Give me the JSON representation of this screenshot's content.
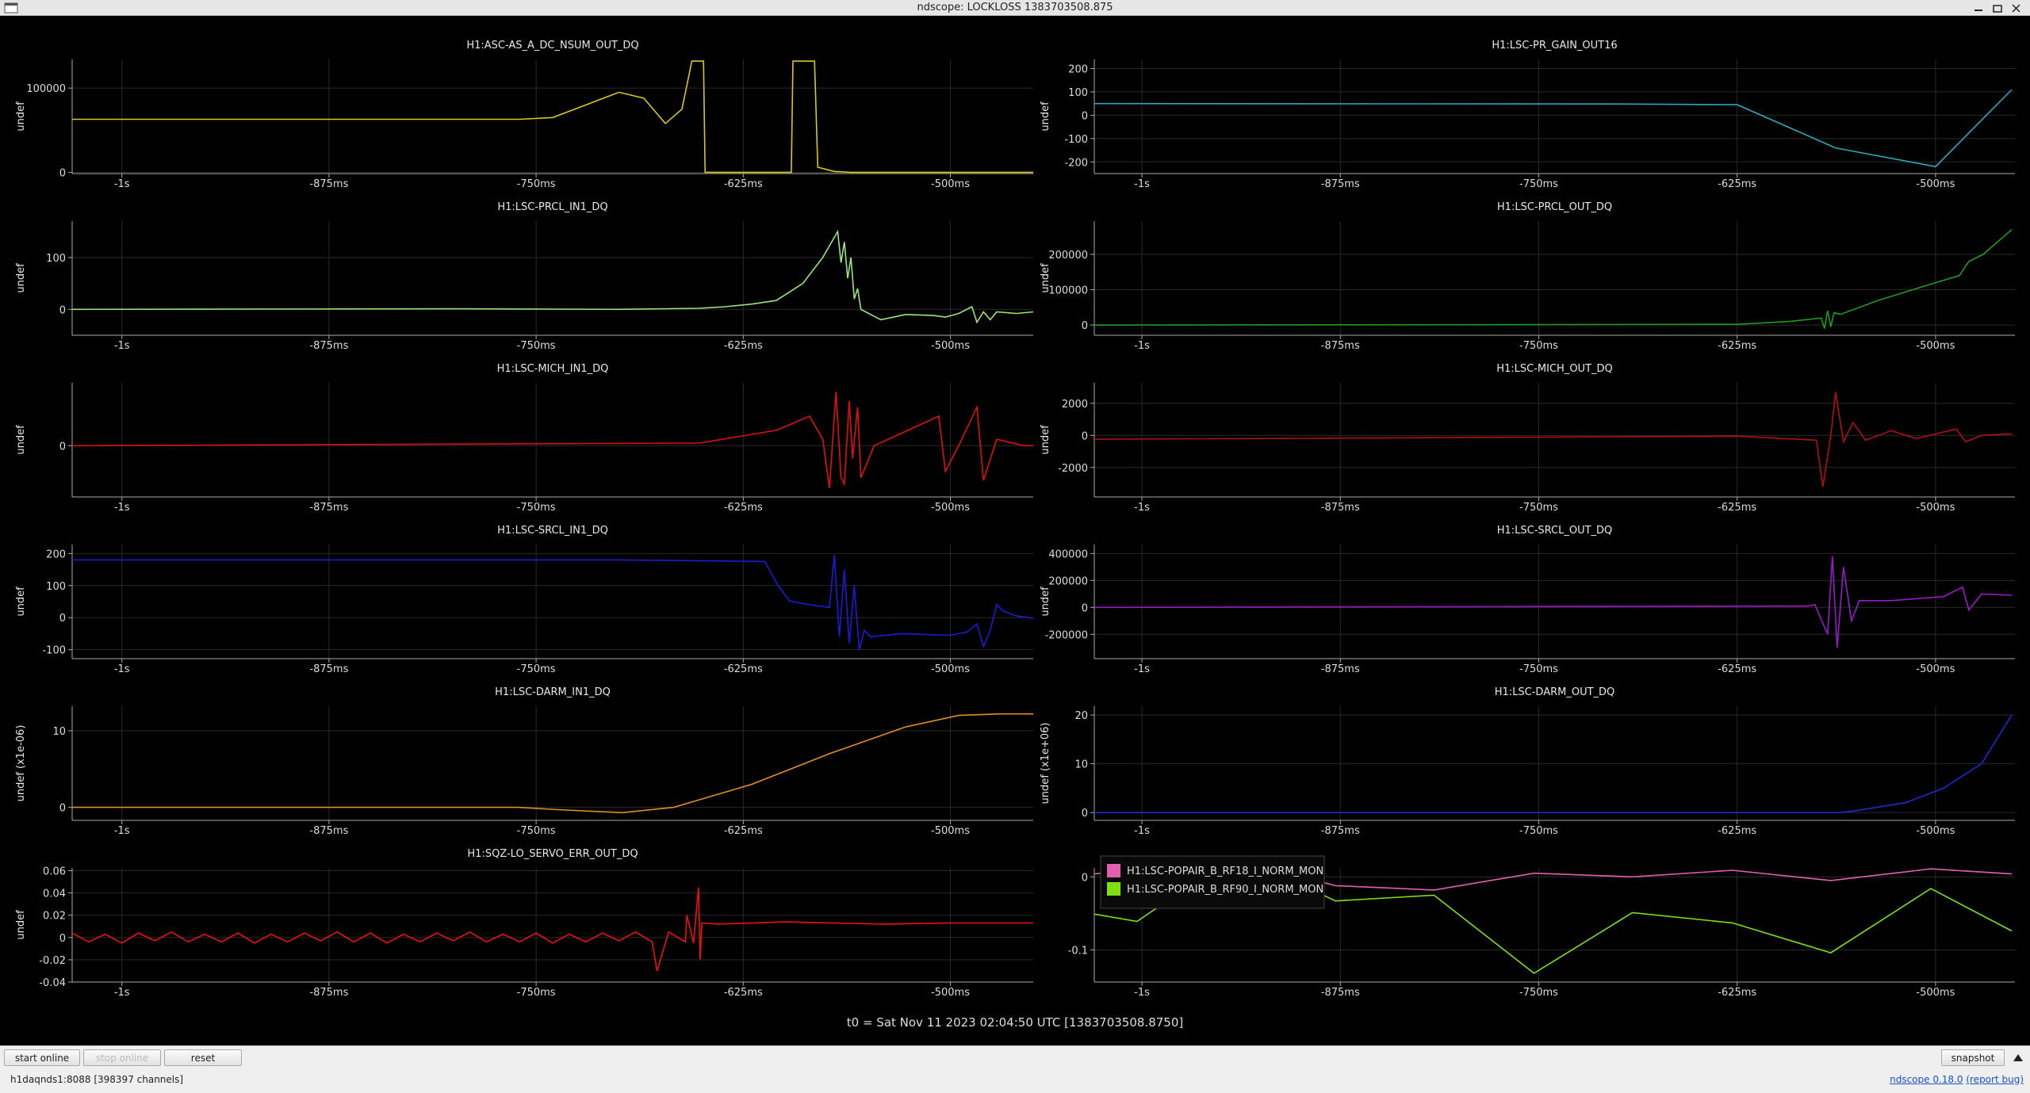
{
  "window": {
    "title": "ndscope: LOCKLOSS 1383703508.875"
  },
  "chart_data": [
    {
      "type": "line",
      "title": "H1:ASC-AS_A_DC_NSUM_OUT_DQ",
      "ylabel": "undef",
      "color": "#d8c81c",
      "xlim": [
        -1030,
        -450
      ],
      "ylim": [
        -1500,
        134000
      ],
      "xticks": [
        {
          "value": -1000,
          "label": "-1s"
        },
        {
          "value": -875,
          "label": "-875ms"
        },
        {
          "value": -750,
          "label": "-750ms"
        },
        {
          "value": -625,
          "label": "-625ms"
        },
        {
          "value": -500,
          "label": "-500ms"
        }
      ],
      "yticks": [
        0,
        100000
      ],
      "grid": true,
      "x": [
        -1030,
        -760,
        -740,
        -720,
        -700,
        -685,
        -672,
        -662,
        -656,
        -649,
        -648,
        -596,
        -595,
        -582,
        -580,
        -570,
        -560,
        -450
      ],
      "values": [
        63000,
        63000,
        65000,
        80000,
        95000,
        88000,
        58000,
        75000,
        132000,
        132000,
        0,
        0,
        132000,
        132000,
        6000,
        1000,
        0,
        0
      ]
    },
    {
      "type": "line",
      "title": "H1:LSC-PR_GAIN_OUT16",
      "ylabel": "undef",
      "color": "#2aa9b8",
      "xlim": [
        -1030,
        -450
      ],
      "ylim": [
        -250,
        239
      ],
      "xticks": [
        {
          "value": -1000,
          "label": "-1s"
        },
        {
          "value": -875,
          "label": "-875ms"
        },
        {
          "value": -750,
          "label": "-750ms"
        },
        {
          "value": -625,
          "label": "-625ms"
        },
        {
          "value": -500,
          "label": "-500ms"
        }
      ],
      "yticks": [
        -200,
        -100,
        0,
        100,
        200
      ],
      "grid": true,
      "x": [
        -1030,
        -700,
        -625,
        -563,
        -500,
        -452
      ],
      "values": [
        50,
        48,
        45,
        -140,
        -220,
        110
      ]
    },
    {
      "type": "line",
      "title": "H1:LSC-PRCL_IN1_DQ",
      "ylabel": "undef",
      "color": "#9be57a",
      "xlim": [
        -1030,
        -450
      ],
      "ylim": [
        -50,
        170
      ],
      "xticks": [
        {
          "value": -1000,
          "label": "-1s"
        },
        {
          "value": -875,
          "label": "-875ms"
        },
        {
          "value": -750,
          "label": "-750ms"
        },
        {
          "value": -625,
          "label": "-625ms"
        },
        {
          "value": -500,
          "label": "-500ms"
        }
      ],
      "yticks": [
        0,
        100
      ],
      "grid": true,
      "x": [
        -1030,
        -800,
        -700,
        -652,
        -636,
        -620,
        -605,
        -589,
        -577,
        -568,
        -566,
        -564,
        -562,
        -560,
        -558,
        -556,
        -554,
        -548,
        -542,
        -527,
        -510,
        -503,
        -495,
        -487,
        -484,
        -480,
        -476,
        -472,
        -460,
        -450
      ],
      "values": [
        0,
        1,
        0,
        2,
        5,
        10,
        17,
        50,
        100,
        150,
        90,
        130,
        60,
        100,
        20,
        40,
        0,
        -10,
        -20,
        -10,
        -12,
        -15,
        -8,
        5,
        -25,
        -5,
        -20,
        -5,
        -8,
        -5
      ]
    },
    {
      "type": "line",
      "title": "H1:LSC-PRCL_OUT_DQ",
      "ylabel": "undef",
      "color": "#1f9a1f",
      "xlim": [
        -1030,
        -450
      ],
      "ylim": [
        -29000,
        294000
      ],
      "xticks": [
        {
          "value": -1000,
          "label": "-1s"
        },
        {
          "value": -875,
          "label": "-875ms"
        },
        {
          "value": -750,
          "label": "-750ms"
        },
        {
          "value": -625,
          "label": "-625ms"
        },
        {
          "value": -500,
          "label": "-500ms"
        }
      ],
      "yticks": [
        0,
        100000,
        200000
      ],
      "grid": true,
      "x": [
        -1030,
        -625,
        -592,
        -572,
        -570,
        -568,
        -566,
        -564,
        -560,
        -536,
        -500,
        -485,
        -479,
        -470,
        -452
      ],
      "values": [
        0,
        2000,
        10000,
        20000,
        -10000,
        40000,
        -5000,
        35000,
        30000,
        70000,
        120000,
        140000,
        180000,
        200000,
        270000
      ]
    },
    {
      "type": "line",
      "title": "H1:LSC-MICH_IN1_DQ",
      "ylabel": "undef",
      "color": "#e01010",
      "xlim": [
        -1030,
        -450
      ],
      "ylim": [
        -40,
        49
      ],
      "xticks": [
        {
          "value": -1000,
          "label": "-1s"
        },
        {
          "value": -875,
          "label": "-875ms"
        },
        {
          "value": -750,
          "label": "-750ms"
        },
        {
          "value": -625,
          "label": "-625ms"
        },
        {
          "value": -500,
          "label": "-500ms"
        }
      ],
      "yticks": [
        0
      ],
      "grid": true,
      "x": [
        -1030,
        -651,
        -605,
        -585,
        -577,
        -573,
        -569,
        -566,
        -564,
        -561,
        -559,
        -556,
        -554,
        -546,
        -507,
        -503,
        -495,
        -484,
        -480,
        -472,
        -456,
        -450
      ],
      "values": [
        0,
        2,
        12,
        23,
        5,
        -33,
        42,
        -25,
        -30,
        35,
        -10,
        30,
        -25,
        0,
        23,
        -20,
        0,
        30,
        -27,
        5,
        0,
        0
      ]
    },
    {
      "type": "line",
      "title": "H1:LSC-MICH_OUT_DQ",
      "ylabel": "undef",
      "color": "#b01010",
      "xlim": [
        -1030,
        -450
      ],
      "ylim": [
        -3840,
        3280
      ],
      "xticks": [
        {
          "value": -1000,
          "label": "-1s"
        },
        {
          "value": -875,
          "label": "-875ms"
        },
        {
          "value": -750,
          "label": "-750ms"
        },
        {
          "value": -625,
          "label": "-625ms"
        },
        {
          "value": -500,
          "label": "-500ms"
        }
      ],
      "yticks": [
        -2000,
        0,
        2000
      ],
      "grid": true,
      "x": [
        -1030,
        -625,
        -575,
        -571,
        -566,
        -563,
        -558,
        -552,
        -544,
        -528,
        -512,
        -487,
        -481,
        -471,
        -452
      ],
      "values": [
        -240,
        -50,
        -300,
        -3200,
        0,
        2700,
        -400,
        800,
        -300,
        300,
        -200,
        400,
        -400,
        0,
        100
      ]
    },
    {
      "type": "line",
      "title": "H1:LSC-SRCL_IN1_DQ",
      "ylabel": "undef",
      "color": "#1c1cd8",
      "xlim": [
        -1030,
        -450
      ],
      "ylim": [
        -128,
        228
      ],
      "xticks": [
        {
          "value": -1000,
          "label": "-1s"
        },
        {
          "value": -875,
          "label": "-875ms"
        },
        {
          "value": -750,
          "label": "-750ms"
        },
        {
          "value": -625,
          "label": "-625ms"
        },
        {
          "value": -500,
          "label": "-500ms"
        }
      ],
      "yticks": [
        -100,
        0,
        100,
        200
      ],
      "grid": true,
      "x": [
        -1030,
        -700,
        -612,
        -604,
        -597,
        -585,
        -573,
        -570,
        -567,
        -564,
        -561,
        -558,
        -555,
        -552,
        -548,
        -530,
        -500,
        -490,
        -484,
        -480,
        -476,
        -472,
        -468,
        -460,
        -450
      ],
      "values": [
        180,
        180,
        175,
        100,
        52,
        40,
        32,
        195,
        -60,
        150,
        -80,
        100,
        -100,
        -40,
        -60,
        -50,
        -55,
        -45,
        -20,
        -90,
        -40,
        40,
        20,
        5,
        -2
      ]
    },
    {
      "type": "line",
      "title": "H1:LSC-SRCL_OUT_DQ",
      "ylabel": "undef",
      "color": "#9a19c8",
      "xlim": [
        -1030,
        -450
      ],
      "ylim": [
        -381000,
        467000
      ],
      "xticks": [
        {
          "value": -1000,
          "label": "-1s"
        },
        {
          "value": -875,
          "label": "-875ms"
        },
        {
          "value": -750,
          "label": "-750ms"
        },
        {
          "value": -625,
          "label": "-625ms"
        },
        {
          "value": -500,
          "label": "-500ms"
        }
      ],
      "yticks": [
        -200000,
        0,
        200000,
        400000
      ],
      "grid": true,
      "x": [
        -1030,
        -580,
        -576,
        -568,
        -565,
        -562,
        -558,
        -553,
        -548,
        -528,
        -495,
        -483,
        -479,
        -471,
        -452
      ],
      "values": [
        0,
        10000,
        20000,
        -200000,
        380000,
        -300000,
        300000,
        -100000,
        50000,
        50000,
        80000,
        150000,
        -20000,
        100000,
        90000
      ]
    },
    {
      "type": "line",
      "title": "H1:LSC-DARM_IN1_DQ",
      "ylabel": "undef (x1e-06)",
      "color": "#e09020",
      "xlim": [
        -1030,
        -450
      ],
      "ylim": [
        -1.7,
        13.2
      ],
      "xticks": [
        {
          "value": -1000,
          "label": "-1s"
        },
        {
          "value": -875,
          "label": "-875ms"
        },
        {
          "value": -750,
          "label": "-750ms"
        },
        {
          "value": -625,
          "label": "-625ms"
        },
        {
          "value": -500,
          "label": "-500ms"
        }
      ],
      "yticks": [
        0,
        10
      ],
      "grid": true,
      "x": [
        -1030,
        -761,
        -737,
        -698,
        -667,
        -620,
        -573,
        -527,
        -495,
        -470,
        -450
      ],
      "values": [
        0,
        0,
        -0.3,
        -0.7,
        0,
        3,
        7,
        10.5,
        12,
        12.2,
        12.2
      ]
    },
    {
      "type": "line",
      "title": "H1:LSC-DARM_OUT_DQ",
      "ylabel": "undef (x1e+06)",
      "color": "#1c2ad0",
      "xlim": [
        -1030,
        -450
      ],
      "ylim": [
        -1.6,
        21.8
      ],
      "xticks": [
        {
          "value": -1000,
          "label": "-1s"
        },
        {
          "value": -875,
          "label": "-875ms"
        },
        {
          "value": -750,
          "label": "-750ms"
        },
        {
          "value": -625,
          "label": "-625ms"
        },
        {
          "value": -500,
          "label": "-500ms"
        }
      ],
      "yticks": [
        0,
        10,
        20
      ],
      "grid": true,
      "x": [
        -1030,
        -560,
        -552,
        -519,
        -495,
        -471,
        -452
      ],
      "values": [
        0,
        0,
        0.3,
        2,
        5,
        10,
        20
      ]
    },
    {
      "type": "line",
      "title": "H1:SQZ-LO_SERVO_ERR_OUT_DQ",
      "ylabel": "undef",
      "color": "#ee1010",
      "xlim": [
        -1030,
        -450
      ],
      "ylim": [
        -0.04,
        0.0625
      ],
      "xticks": [
        {
          "value": -1000,
          "label": "-1s"
        },
        {
          "value": -875,
          "label": "-875ms"
        },
        {
          "value": -750,
          "label": "-750ms"
        },
        {
          "value": -625,
          "label": "-625ms"
        },
        {
          "value": -500,
          "label": "-500ms"
        }
      ],
      "yticks": [
        -0.04,
        -0.02,
        0,
        0.02,
        0.04,
        0.06
      ],
      "grid": true,
      "x": [
        -1030,
        -1020,
        -1010,
        -1000,
        -990,
        -980,
        -970,
        -960,
        -950,
        -940,
        -930,
        -920,
        -910,
        -900,
        -890,
        -880,
        -870,
        -860,
        -850,
        -840,
        -830,
        -820,
        -810,
        -800,
        -790,
        -780,
        -770,
        -760,
        -750,
        -740,
        -730,
        -720,
        -710,
        -700,
        -690,
        -680,
        -677,
        -670,
        -660,
        -659,
        -655,
        -652,
        -651,
        -650,
        -640,
        -600,
        -570,
        -540,
        -500,
        -450
      ],
      "values": [
        0.004,
        -0.004,
        0.003,
        -0.005,
        0.004,
        -0.003,
        0.005,
        -0.004,
        0.003,
        -0.004,
        0.004,
        -0.005,
        0.003,
        -0.004,
        0.004,
        -0.003,
        0.005,
        -0.004,
        0.004,
        -0.005,
        0.003,
        -0.004,
        0.004,
        -0.003,
        0.005,
        -0.004,
        0.003,
        -0.004,
        0.004,
        -0.005,
        0.003,
        -0.004,
        0.004,
        -0.003,
        0.005,
        -0.004,
        -0.03,
        0.005,
        -0.004,
        0.02,
        -0.005,
        0.045,
        -0.02,
        0.013,
        0.012,
        0.014,
        0.013,
        0.012,
        0.013,
        0.013
      ]
    },
    {
      "type": "line",
      "legend": "top-left",
      "xlim": [
        -1030,
        -450
      ],
      "ylim": [
        -0.144,
        0.0123
      ],
      "xticks": [
        {
          "value": -1000,
          "label": "-1s"
        },
        {
          "value": -875,
          "label": "-875ms"
        },
        {
          "value": -750,
          "label": "-750ms"
        },
        {
          "value": -625,
          "label": "-625ms"
        },
        {
          "value": -500,
          "label": "-500ms"
        }
      ],
      "yticks": [
        -0.1,
        0
      ],
      "grid": true,
      "x": [
        -1030,
        -1003,
        -941,
        -878,
        -816,
        -753,
        -691,
        -628,
        -566,
        -503,
        -452
      ],
      "series": [
        {
          "name": "H1:LSC-POPAIR_B_RF18_I_NORM_MON",
          "color": "#e060b0",
          "values": [
            0.004,
            0.009,
            0.023,
            -0.012,
            -0.018,
            0.005,
            0,
            0.009,
            -0.005,
            0.011,
            0.004
          ]
        },
        {
          "name": "H1:LSC-POPAIR_B_RF90_I_NORM_MON",
          "color": "#7ee010",
          "values": [
            -0.051,
            -0.061,
            0.032,
            -0.033,
            -0.025,
            -0.132,
            -0.049,
            -0.063,
            -0.104,
            -0.016,
            -0.074
          ]
        }
      ]
    }
  ],
  "footer": {
    "t0": "t0 = Sat Nov 11 2023 02:04:50 UTC [1383703508.8750]"
  },
  "toolbar": {
    "buttons": [
      "start online",
      "stop online",
      "reset"
    ],
    "snapshot": "snapshot"
  },
  "status": {
    "server": "h1daqnds1:8088  [398397 channels]",
    "version": "ndscope 0.18.0",
    "report": "(report bug)"
  }
}
